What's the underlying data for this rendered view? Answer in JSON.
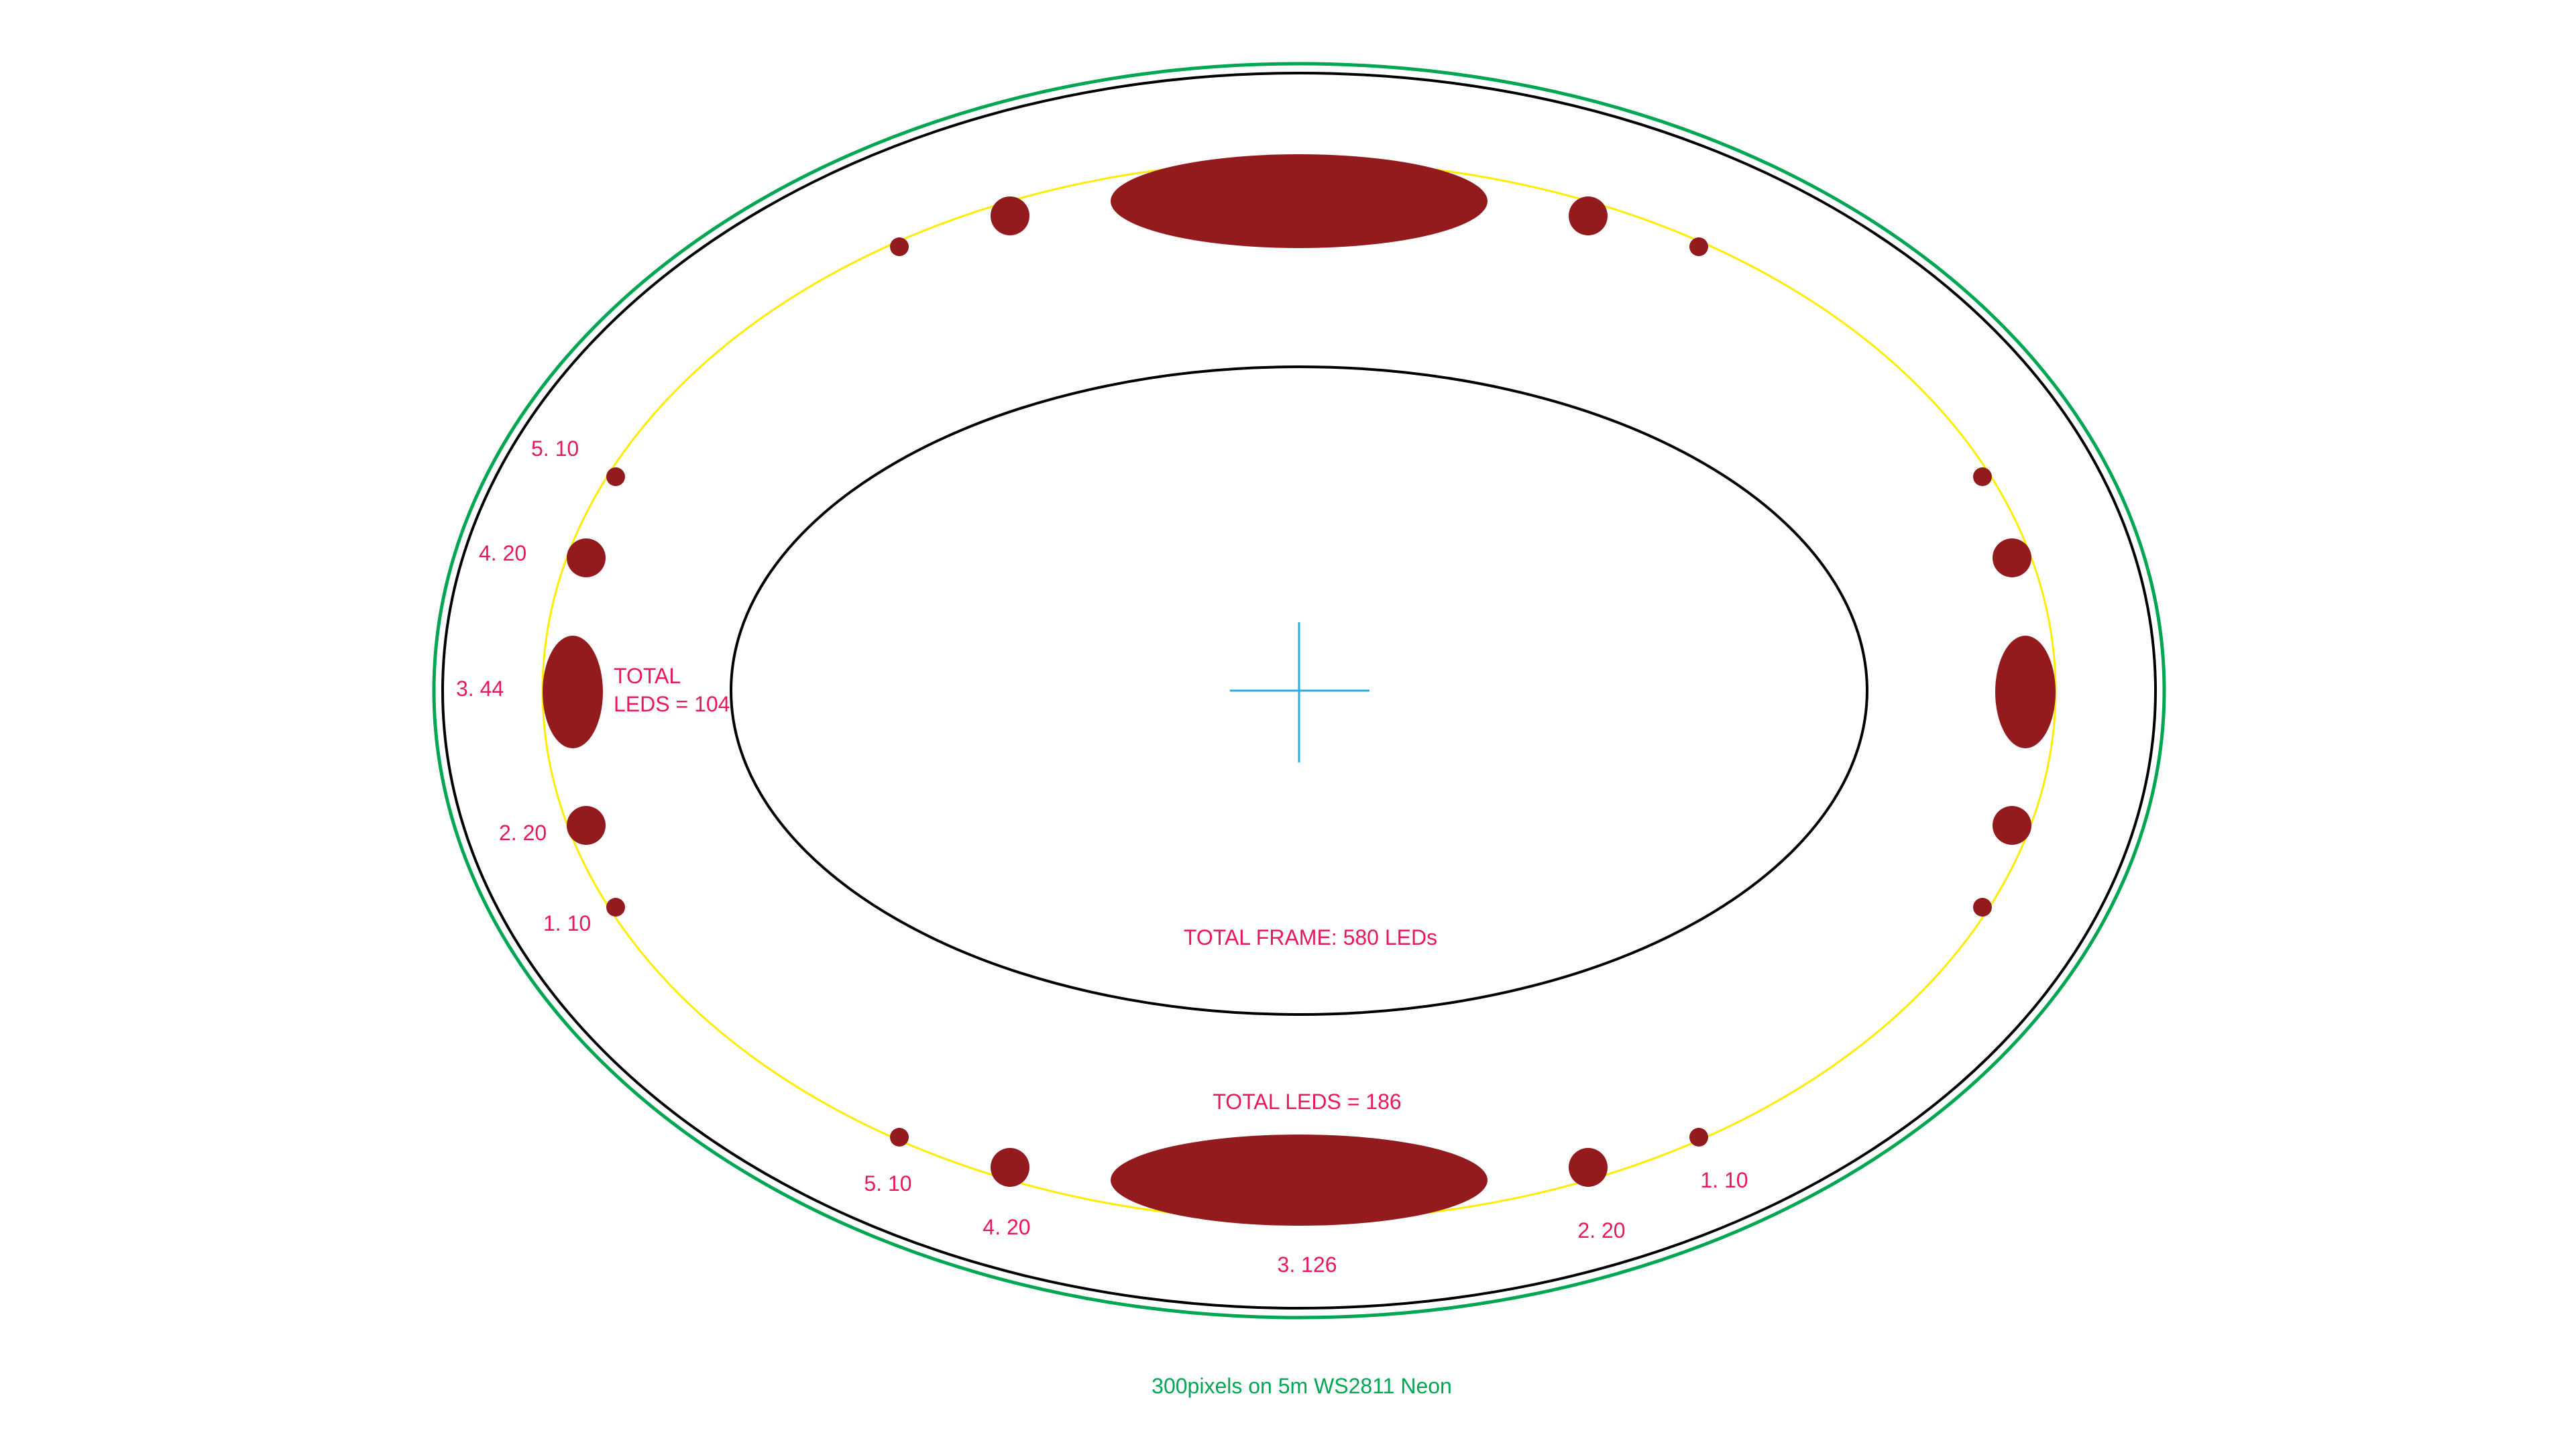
{
  "colors": {
    "background": "#ffffff",
    "outer_ring": "#00a651",
    "frame_line": "#000000",
    "led_path": "#ffed00",
    "led_cluster": "#931b1e",
    "label_text": "#e8185a",
    "crosshair": "#29abe2",
    "footer_text": "#00a651"
  },
  "icons": {
    "center_mark": "crosshair-icon",
    "led": "filled-ellipse"
  },
  "left_side": {
    "total_label_line1": "TOTAL",
    "total_label_line2": "LEDS = 104",
    "segments": [
      {
        "label": "5. 10",
        "size": "small"
      },
      {
        "label": "4. 20",
        "size": "medium"
      },
      {
        "label": "3. 44",
        "size": "large"
      },
      {
        "label": "2. 20",
        "size": "medium"
      },
      {
        "label": "1. 10",
        "size": "small"
      }
    ]
  },
  "bottom_side": {
    "total_label": "TOTAL LEDS = 186",
    "segments": [
      {
        "label": "5. 10",
        "size": "small"
      },
      {
        "label": "4. 20",
        "size": "medium"
      },
      {
        "label": "3. 126",
        "size": "large"
      },
      {
        "label": "2. 20",
        "size": "medium"
      },
      {
        "label": "1. 10",
        "size": "small"
      }
    ]
  },
  "frame_total": "TOTAL FRAME: 580 LEDs",
  "footer": "300pixels on 5m WS2811 Neon"
}
